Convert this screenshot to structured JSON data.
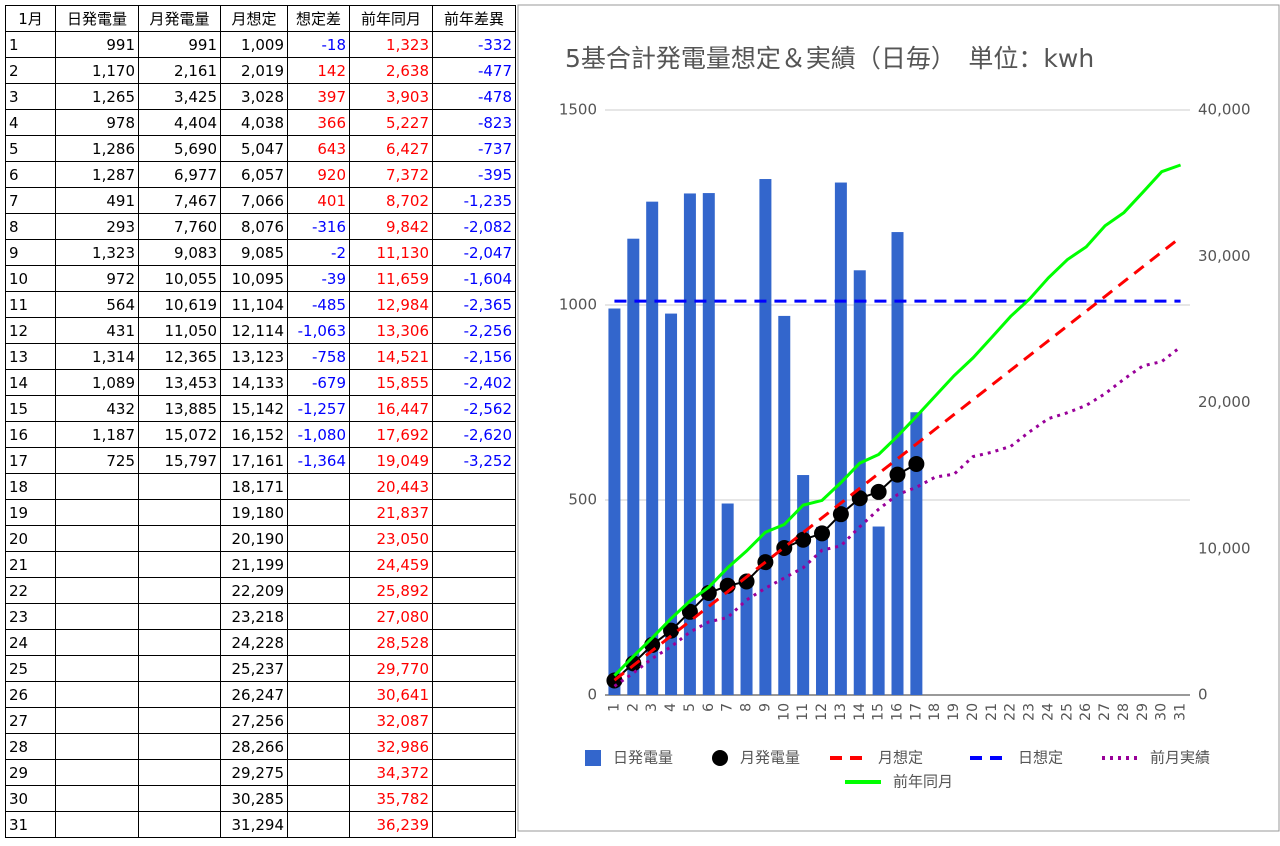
{
  "table": {
    "header": [
      "1月",
      "日発電量",
      "月発電量",
      "月想定",
      "想定差",
      "前年同月",
      "前年差異"
    ],
    "rows": [
      [
        "1",
        "991",
        "991",
        "1,009",
        "-18",
        "1,323",
        "-332"
      ],
      [
        "2",
        "1,170",
        "2,161",
        "2,019",
        "142",
        "2,638",
        "-477"
      ],
      [
        "3",
        "1,265",
        "3,425",
        "3,028",
        "397",
        "3,903",
        "-478"
      ],
      [
        "4",
        "978",
        "4,404",
        "4,038",
        "366",
        "5,227",
        "-823"
      ],
      [
        "5",
        "1,286",
        "5,690",
        "5,047",
        "643",
        "6,427",
        "-737"
      ],
      [
        "6",
        "1,287",
        "6,977",
        "6,057",
        "920",
        "7,372",
        "-395"
      ],
      [
        "7",
        "491",
        "7,467",
        "7,066",
        "401",
        "8,702",
        "-1,235"
      ],
      [
        "8",
        "293",
        "7,760",
        "8,076",
        "-316",
        "9,842",
        "-2,082"
      ],
      [
        "9",
        "1,323",
        "9,083",
        "9,085",
        "-2",
        "11,130",
        "-2,047"
      ],
      [
        "10",
        "972",
        "10,055",
        "10,095",
        "-39",
        "11,659",
        "-1,604"
      ],
      [
        "11",
        "564",
        "10,619",
        "11,104",
        "-485",
        "12,984",
        "-2,365"
      ],
      [
        "12",
        "431",
        "11,050",
        "12,114",
        "-1,063",
        "13,306",
        "-2,256"
      ],
      [
        "13",
        "1,314",
        "12,365",
        "13,123",
        "-758",
        "14,521",
        "-2,156"
      ],
      [
        "14",
        "1,089",
        "13,453",
        "14,133",
        "-679",
        "15,855",
        "-2,402"
      ],
      [
        "15",
        "432",
        "13,885",
        "15,142",
        "-1,257",
        "16,447",
        "-2,562"
      ],
      [
        "16",
        "1,187",
        "15,072",
        "16,152",
        "-1,080",
        "17,692",
        "-2,620"
      ],
      [
        "17",
        "725",
        "15,797",
        "17,161",
        "-1,364",
        "19,049",
        "-3,252"
      ],
      [
        "18",
        null,
        null,
        "18,171",
        null,
        "20,443",
        null
      ],
      [
        "19",
        null,
        null,
        "19,180",
        null,
        "21,837",
        null
      ],
      [
        "20",
        null,
        null,
        "20,190",
        null,
        "23,050",
        null
      ],
      [
        "21",
        null,
        null,
        "21,199",
        null,
        "24,459",
        null
      ],
      [
        "22",
        null,
        null,
        "22,209",
        null,
        "25,892",
        null
      ],
      [
        "23",
        null,
        null,
        "23,218",
        null,
        "27,080",
        null
      ],
      [
        "24",
        null,
        null,
        "24,228",
        null,
        "28,528",
        null
      ],
      [
        "25",
        null,
        null,
        "25,237",
        null,
        "29,770",
        null
      ],
      [
        "26",
        null,
        null,
        "26,247",
        null,
        "30,641",
        null
      ],
      [
        "27",
        null,
        null,
        "27,256",
        null,
        "32,087",
        null
      ],
      [
        "28",
        null,
        null,
        "28,266",
        null,
        "32,986",
        null
      ],
      [
        "29",
        null,
        null,
        "29,275",
        null,
        "34,372",
        null
      ],
      [
        "30",
        null,
        null,
        "30,285",
        null,
        "35,782",
        null
      ],
      [
        "31",
        null,
        null,
        "31,294",
        null,
        "36,239",
        null
      ]
    ]
  },
  "chart_data": {
    "type": "combo",
    "title": "5基合計発電量想定＆実績（日毎）　単位：kwh",
    "categories": [
      1,
      2,
      3,
      4,
      5,
      6,
      7,
      8,
      9,
      10,
      11,
      12,
      13,
      14,
      15,
      16,
      17,
      18,
      19,
      20,
      21,
      22,
      23,
      24,
      25,
      26,
      27,
      28,
      29,
      30,
      31
    ],
    "ylim": [
      0,
      1500
    ],
    "yticks": [
      0,
      500,
      1000,
      1500
    ],
    "y2lim": [
      0,
      40000
    ],
    "y2ticks": [
      0,
      {
        "value": 10000,
        "label": "10,000"
      },
      {
        "value": 20000,
        "label": "20,000"
      },
      {
        "value": 30000,
        "label": "30,000"
      },
      {
        "value": 40000,
        "label": "40,000"
      }
    ],
    "grid": true,
    "legend": "bottom",
    "series": [
      {
        "name": "日発電量",
        "kind": "bar",
        "color": "#3366cc",
        "values": [
          991,
          1170,
          1265,
          978,
          1286,
          1287,
          491,
          293,
          1323,
          972,
          564,
          431,
          1314,
          1089,
          432,
          1187,
          725,
          null,
          null,
          null,
          null,
          null,
          null,
          null,
          null,
          null,
          null,
          null,
          null,
          null,
          null
        ]
      },
      {
        "name": "月発電量",
        "kind": "dots",
        "axis": "y2",
        "color": "#000000",
        "values": [
          991,
          2161,
          3425,
          4404,
          5690,
          6977,
          7467,
          7760,
          9083,
          10055,
          10619,
          11050,
          12365,
          13453,
          13885,
          15072,
          15797,
          null,
          null,
          null,
          null,
          null,
          null,
          null,
          null,
          null,
          null,
          null,
          null,
          null,
          null
        ]
      },
      {
        "name": "月想定",
        "kind": "line",
        "dash": "dashed",
        "axis": "y2",
        "color": "#ff0000",
        "values": [
          1009,
          2019,
          3028,
          4038,
          5047,
          6057,
          7066,
          8076,
          9085,
          10095,
          11104,
          12114,
          13123,
          14133,
          15142,
          16152,
          17161,
          18171,
          19180,
          20190,
          21199,
          22209,
          23218,
          24228,
          25237,
          26247,
          27256,
          28266,
          29275,
          30285,
          31294
        ]
      },
      {
        "name": "日想定",
        "kind": "line",
        "dash": "dashed",
        "color": "#0000ff",
        "values": [
          1010,
          1010,
          1010,
          1010,
          1010,
          1010,
          1010,
          1010,
          1010,
          1010,
          1010,
          1010,
          1010,
          1010,
          1010,
          1010,
          1010,
          1010,
          1010,
          1010,
          1010,
          1010,
          1010,
          1010,
          1010,
          1010,
          1010,
          1010,
          1010,
          1010,
          1010
        ]
      },
      {
        "name": "前月実績",
        "kind": "line",
        "dash": "dotted",
        "axis": "y2",
        "color": "#990099",
        "values": [
          600,
          1500,
          2500,
          3300,
          4300,
          5000,
          5300,
          6500,
          7300,
          8000,
          8700,
          9900,
          10200,
          11500,
          12700,
          13700,
          14200,
          14900,
          15100,
          16300,
          16600,
          17000,
          18000,
          18900,
          19300,
          19800,
          20600,
          21600,
          22500,
          22800,
          23800
        ]
      },
      {
        "name": "前年同月",
        "kind": "line",
        "dash": "solid",
        "axis": "y2",
        "color": "#00ff00",
        "values": [
          1323,
          2638,
          3903,
          5227,
          6427,
          7372,
          8702,
          9842,
          11130,
          11659,
          12984,
          13306,
          14521,
          15855,
          16447,
          17692,
          19049,
          20443,
          21837,
          23050,
          24459,
          25892,
          27080,
          28528,
          29770,
          30641,
          32087,
          32986,
          34372,
          35782,
          36239
        ]
      }
    ]
  }
}
